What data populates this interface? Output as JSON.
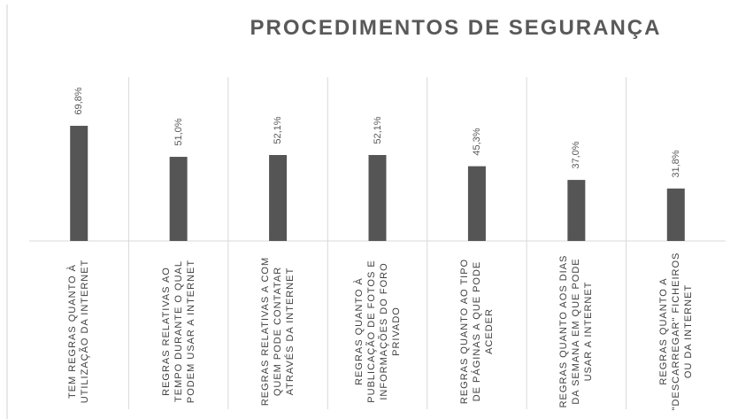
{
  "chart_data": {
    "type": "bar",
    "title": "PROCEDIMENTOS DE SEGURANÇA",
    "categories": [
      "TEM REGRAS QUANTO À UTILIZAÇÃO DA INTERNET",
      "REGRAS RELATIVAS AO TEMPO DURANTE O QUAL PODEM USAR A INTERNET",
      "REGRAS RELATIVAS A COM QUEM PODE CONTATAR ATRAVÉS DA INTERNET",
      "REGRAS QUANTO À PUBLICAÇÃO DE FOTOS E INFORMAÇÕES DO FORO PRIVADO",
      "REGRAS QUANTO AO TIPO DE PÁGINAS A QUE PODE ACEDER",
      "REGRAS QUANTO AOS DIAS DA SEMANA EM QUE PODE USAR A INTERNET",
      "REGRAS QUANTO A \"DESCARREGAR\" FICHEIROS OU DA INTERNET"
    ],
    "values": [
      69.8,
      51.0,
      52.1,
      52.1,
      45.3,
      37.0,
      31.8
    ],
    "value_labels": [
      "69,8%",
      "51,0%",
      "52,1%",
      "52,1%",
      "45,3%",
      "37,0%",
      "31,8%"
    ],
    "color": "#555555"
  }
}
